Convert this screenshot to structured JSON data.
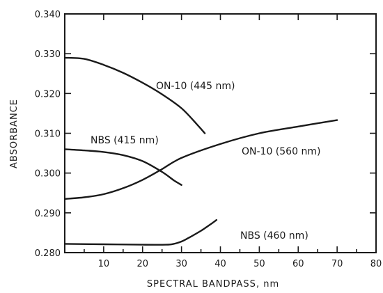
{
  "chart_data": {
    "type": "line",
    "xlabel": "SPECTRAL BANDPASS, nm",
    "ylabel": "ABSORBANCE",
    "xlim": [
      0,
      80
    ],
    "ylim": [
      0.28,
      0.34
    ],
    "x_ticks": [
      10,
      20,
      30,
      40,
      50,
      60,
      70,
      80
    ],
    "y_ticks": [
      "0.280",
      "0.290",
      "0.300",
      "0.310",
      "0.320",
      "0.330",
      "0.340"
    ],
    "grid": false,
    "series": [
      {
        "name": "ON-10 (445 nm)",
        "x": [
          0,
          5,
          10,
          15,
          20,
          25,
          30,
          34,
          36
        ],
        "y": [
          0.329,
          0.3287,
          0.3272,
          0.3252,
          0.3227,
          0.3198,
          0.3163,
          0.3122,
          0.31
        ]
      },
      {
        "name": "NBS (415 nm)",
        "x": [
          0,
          5,
          10,
          15,
          20,
          25,
          28,
          30
        ],
        "y": [
          0.306,
          0.3057,
          0.3053,
          0.3045,
          0.303,
          0.3003,
          0.2982,
          0.297
        ]
      },
      {
        "name": "ON-10 (560 nm)",
        "x": [
          0,
          5,
          10,
          15,
          20,
          25,
          30,
          40,
          50,
          60,
          70
        ],
        "y": [
          0.2935,
          0.2939,
          0.2947,
          0.2962,
          0.2983,
          0.301,
          0.3038,
          0.3073,
          0.31,
          0.3117,
          0.3133
        ]
      },
      {
        "name": "NBS (460 nm)",
        "x": [
          0,
          10,
          20,
          26,
          28,
          30,
          32,
          35,
          37,
          39
        ],
        "y": [
          0.2822,
          0.2821,
          0.282,
          0.282,
          0.2822,
          0.2828,
          0.2838,
          0.2855,
          0.2868,
          0.2882
        ]
      }
    ]
  }
}
